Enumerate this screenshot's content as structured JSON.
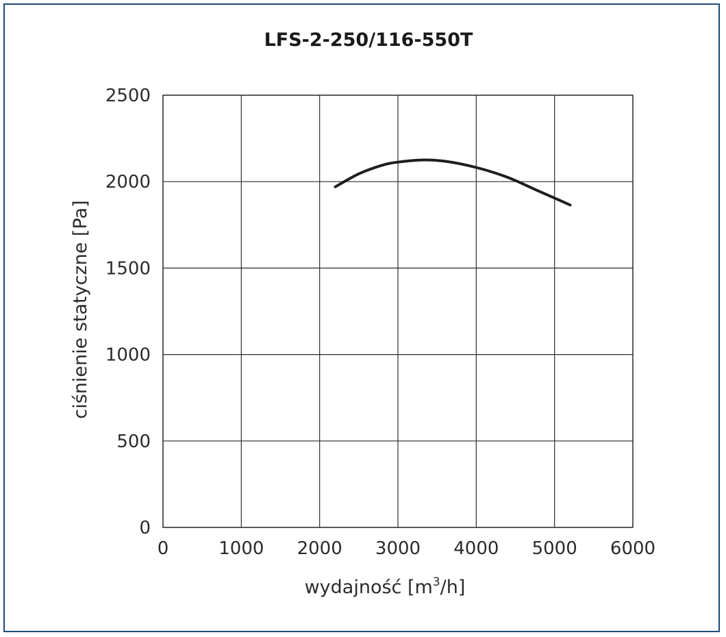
{
  "chart_data": {
    "type": "line",
    "title": "LFS-2-250/116-550T",
    "xlabel": "wydajność [m",
    "xlabel_sup": "3",
    "xlabel_suffix": "/h]",
    "ylabel": "ciśnienie statyczne [Pa]",
    "xlim": [
      0,
      6000
    ],
    "ylim": [
      0,
      2500
    ],
    "x_ticks": [
      0,
      1000,
      2000,
      3000,
      4000,
      5000,
      6000
    ],
    "y_ticks": [
      0,
      500,
      1000,
      1500,
      2000,
      2500
    ],
    "x_tick_labels": [
      "0",
      "1000",
      "2000",
      "3000",
      "4000",
      "5000",
      "6000"
    ],
    "y_tick_labels": [
      "0",
      "500",
      "1000",
      "1500",
      "2000",
      "2500"
    ],
    "grid": true,
    "series": [
      {
        "x": [
          2200,
          2500,
          2800,
          3000,
          3300,
          3600,
          4000,
          4400,
          4800,
          5000,
          5200
        ],
        "y": [
          1970,
          2045,
          2095,
          2113,
          2125,
          2118,
          2082,
          2025,
          1945,
          1905,
          1865
        ],
        "color": "#1e1e1e"
      }
    ]
  }
}
